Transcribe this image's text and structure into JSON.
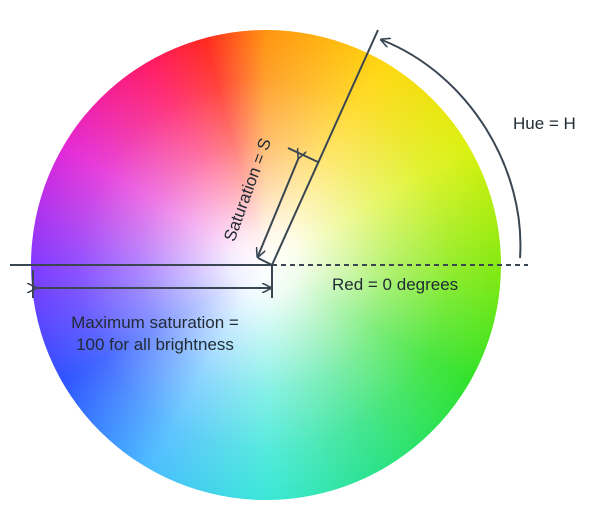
{
  "labels": {
    "hue": "Hue = H",
    "saturation": "Saturation = S",
    "red_reference": "Red = 0 degrees",
    "max_saturation_line1": "Maximum saturation =",
    "max_saturation_line2": "100 for all brightness"
  },
  "colors": {
    "line": "#3a4652",
    "text": "#1f2a33"
  }
}
